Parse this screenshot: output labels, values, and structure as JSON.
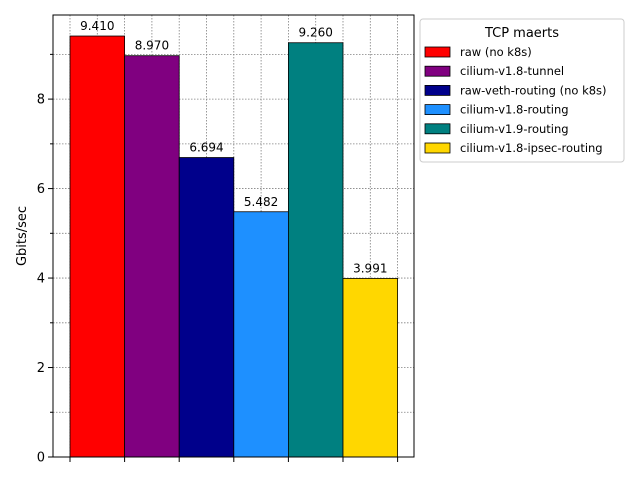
{
  "chart_data": {
    "type": "bar",
    "title": "",
    "xlabel": "",
    "ylabel": "Gbits/sec",
    "ylim": [
      0,
      9.88
    ],
    "yticks": [
      0,
      2,
      4,
      6,
      8
    ],
    "grid": true,
    "legend_title": "TCP maerts",
    "legend_position": "outside-top-right",
    "series": [
      {
        "name": "raw (no k8s)",
        "value": 9.41,
        "label": "9.410",
        "color": "#ff0000"
      },
      {
        "name": "cilium-v1.8-tunnel",
        "value": 8.97,
        "label": "8.970",
        "color": "#800080"
      },
      {
        "name": "raw-veth-routing (no k8s)",
        "value": 6.694,
        "label": "6.694",
        "color": "#00008b"
      },
      {
        "name": "cilium-v1.8-routing",
        "value": 5.482,
        "label": "5.482",
        "color": "#1e90ff"
      },
      {
        "name": "cilium-v1.9-routing",
        "value": 9.26,
        "label": "9.260",
        "color": "#008080"
      },
      {
        "name": "cilium-v1.8-ipsec-routing",
        "value": 3.991,
        "label": "3.991",
        "color": "#ffd700"
      }
    ]
  }
}
